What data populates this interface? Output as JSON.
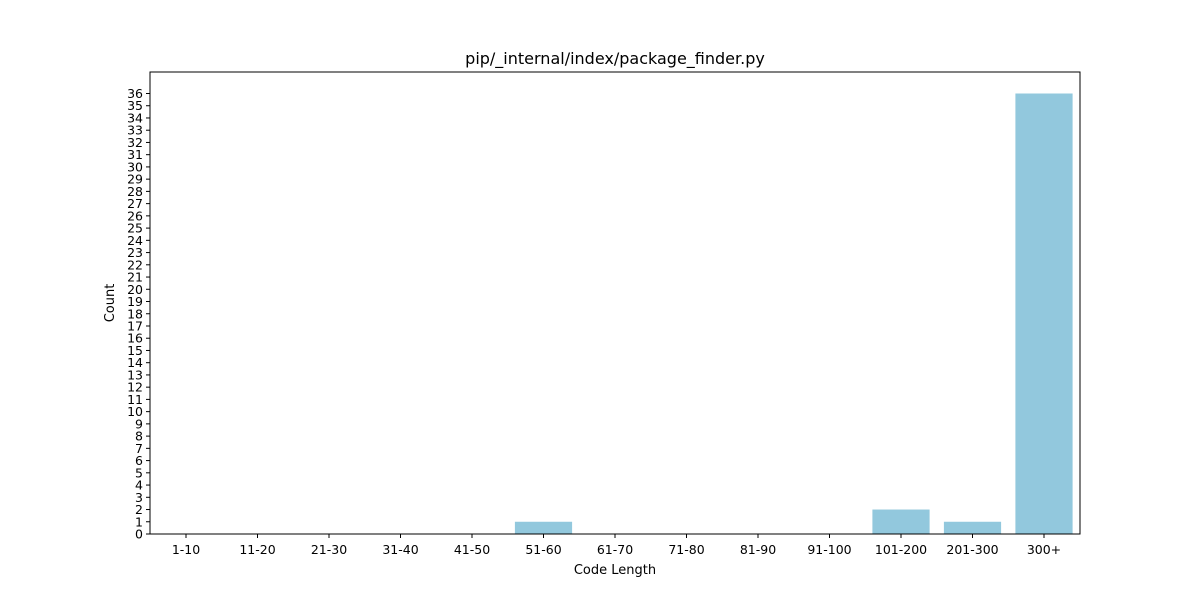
{
  "chart_data": {
    "type": "bar",
    "title": "pip/_internal/index/package_finder.py",
    "xlabel": "Code Length",
    "ylabel": "Count",
    "categories": [
      "1-10",
      "11-20",
      "21-30",
      "31-40",
      "41-50",
      "51-60",
      "61-70",
      "71-80",
      "81-90",
      "91-100",
      "101-200",
      "201-300",
      "300+"
    ],
    "values": [
      0,
      0,
      0,
      0,
      0,
      1,
      0,
      0,
      0,
      0,
      2,
      1,
      36
    ],
    "ylim": [
      0,
      36
    ],
    "yticks": [
      0,
      1,
      2,
      3,
      4,
      5,
      6,
      7,
      8,
      9,
      10,
      11,
      12,
      13,
      14,
      15,
      16,
      17,
      18,
      19,
      20,
      21,
      22,
      23,
      24,
      25,
      26,
      27,
      28,
      29,
      30,
      31,
      32,
      33,
      34,
      35,
      36
    ],
    "grid": false,
    "colors": {
      "bar": "#92c8dd",
      "axis": "#000000",
      "background": "#ffffff"
    }
  }
}
